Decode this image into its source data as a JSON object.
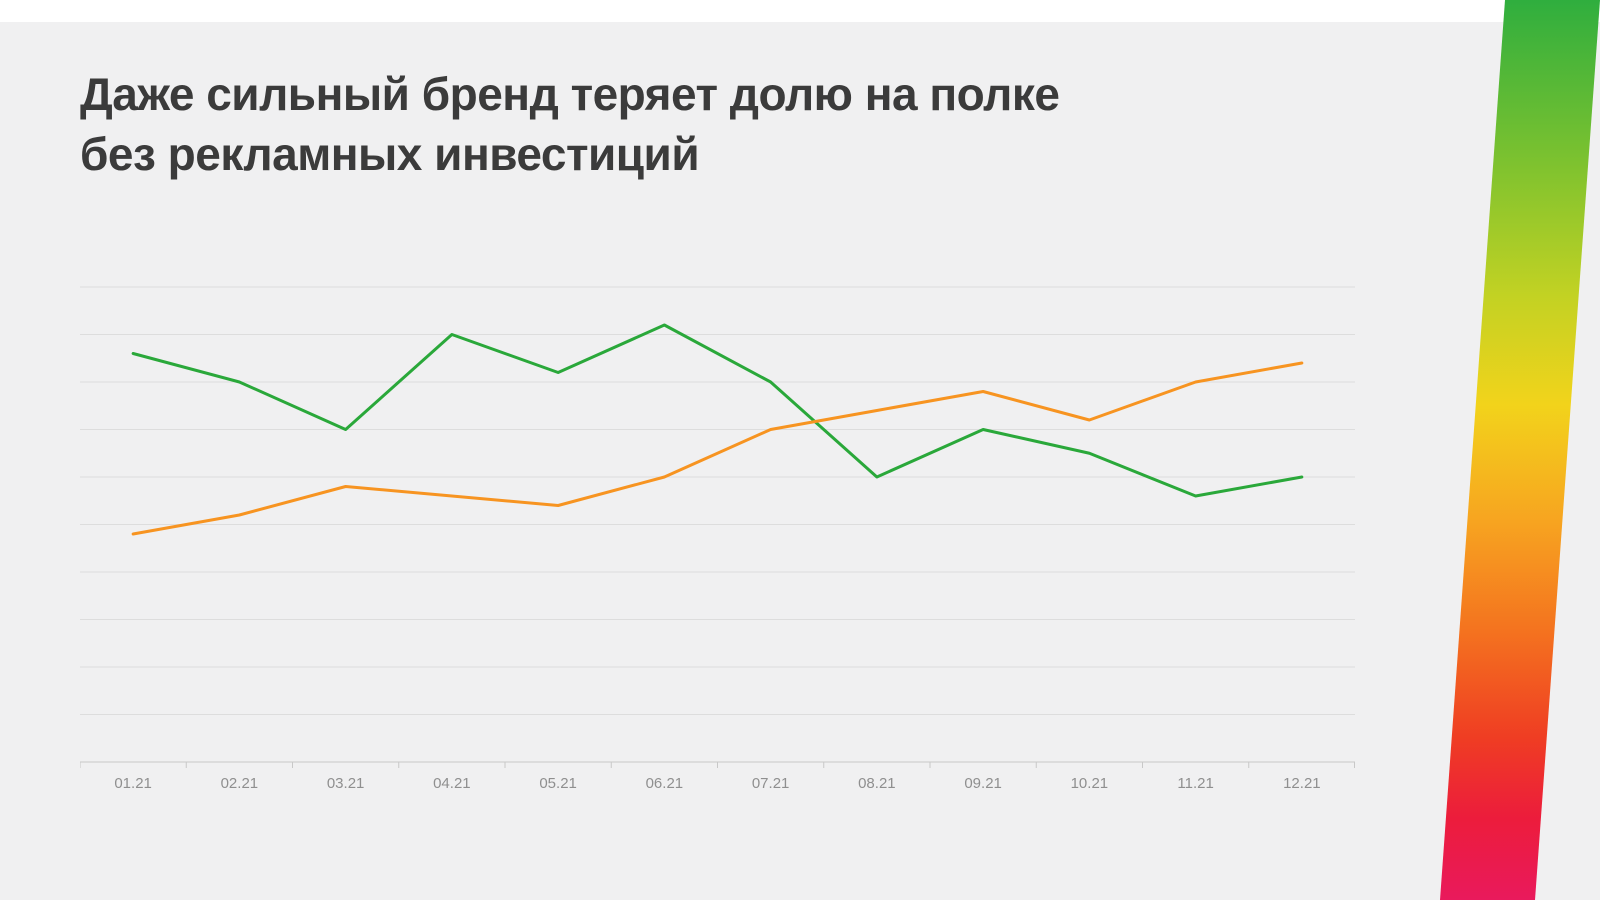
{
  "slide": {
    "title_line1": "Даже сильный бренд теряет долю на полке",
    "title_line2": "без рекламных инвестиций"
  },
  "colors": {
    "background": "#f0f0f1",
    "title": "#3b3b3b",
    "grid": "#dddddd",
    "axis": "#c8c8c8",
    "tick_label": "#8f8f8f"
  },
  "chart_data": {
    "type": "line",
    "title": "Даже сильный бренд теряет долю на полке без рекламных инвестиций",
    "categories": [
      "01.21",
      "02.21",
      "03.21",
      "04.21",
      "05.21",
      "06.21",
      "07.21",
      "08.21",
      "09.21",
      "10.21",
      "11.21",
      "12.21"
    ],
    "series": [
      {
        "name": "green-line",
        "color": "#2aa83a",
        "values": [
          86,
          80,
          70,
          90,
          82,
          92,
          80,
          60,
          70,
          65,
          56,
          60
        ]
      },
      {
        "name": "orange-line",
        "color": "#f79421",
        "values": [
          48,
          52,
          58,
          56,
          54,
          60,
          70,
          74,
          78,
          72,
          80,
          84
        ]
      }
    ],
    "xlabel": "",
    "ylabel": "",
    "ylim": [
      0,
      100
    ],
    "grid_step": 10,
    "grid": "horizontal",
    "legend": "none"
  }
}
